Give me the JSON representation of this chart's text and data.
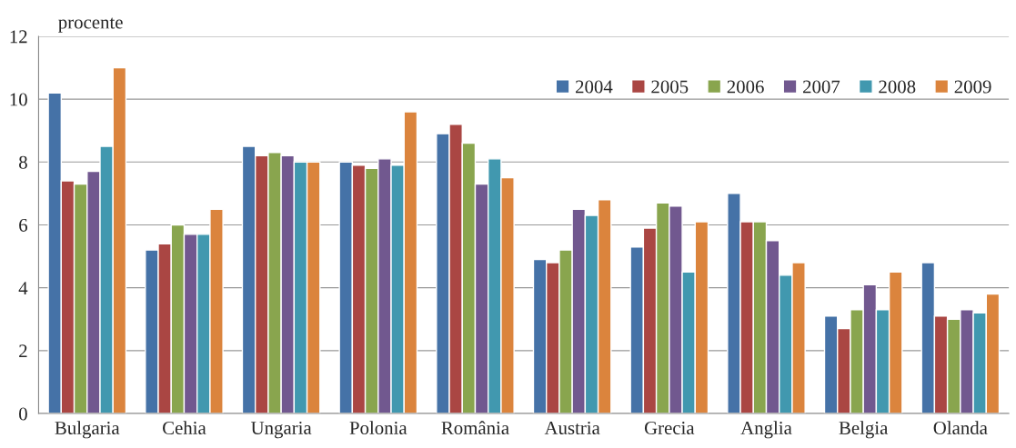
{
  "chart_data": {
    "type": "bar",
    "ylabel": "procente",
    "categories": [
      "Bulgaria",
      "Cehia",
      "Ungaria",
      "Polonia",
      "România",
      "Austria",
      "Grecia",
      "Anglia",
      "Belgia",
      "Olanda"
    ],
    "series": [
      {
        "name": "2004",
        "color": "#4572a7",
        "values": [
          10.2,
          5.2,
          8.5,
          8.0,
          8.9,
          4.9,
          5.3,
          7.0,
          3.1,
          4.8
        ]
      },
      {
        "name": "2005",
        "color": "#aa4643",
        "values": [
          7.4,
          5.4,
          8.2,
          7.9,
          9.2,
          4.8,
          5.9,
          6.1,
          2.7,
          3.1
        ]
      },
      {
        "name": "2006",
        "color": "#89a54e",
        "values": [
          7.3,
          6.0,
          8.3,
          7.8,
          8.6,
          5.2,
          6.7,
          6.1,
          3.3,
          3.0
        ]
      },
      {
        "name": "2007",
        "color": "#71588f",
        "values": [
          7.7,
          5.7,
          8.2,
          8.1,
          7.3,
          6.5,
          6.6,
          5.5,
          4.1,
          3.3
        ]
      },
      {
        "name": "2008",
        "color": "#4198af",
        "values": [
          8.5,
          5.7,
          8.0,
          7.9,
          8.1,
          6.3,
          4.5,
          4.4,
          3.3,
          3.2
        ]
      },
      {
        "name": "2009",
        "color": "#db843d",
        "values": [
          11.0,
          6.5,
          8.0,
          9.6,
          7.5,
          6.8,
          6.1,
          4.8,
          4.5,
          3.8
        ]
      }
    ],
    "ylim": [
      0,
      12
    ],
    "yticks": [
      0,
      2,
      4,
      6,
      8,
      10,
      12
    ],
    "grid": "y",
    "legend": "top right"
  }
}
